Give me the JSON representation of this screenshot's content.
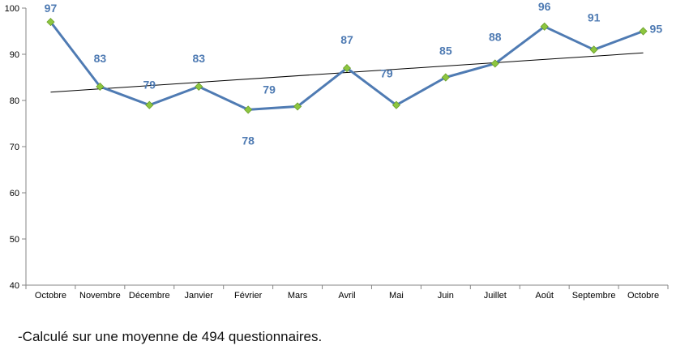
{
  "chart_data": {
    "type": "line",
    "categories": [
      "Octobre",
      "Novembre",
      "Décembre",
      "Janvier",
      "Février",
      "Mars",
      "Avril",
      "Mai",
      "Juin",
      "Juillet",
      "Août",
      "Septembre",
      "Octobre"
    ],
    "series": [
      {
        "values": [
          97,
          83,
          79,
          83,
          78,
          78.7,
          87,
          79,
          85,
          88,
          96,
          91,
          95
        ],
        "data_labels": [
          "97",
          "83",
          "79",
          "83",
          "78",
          "79",
          "87",
          "79",
          "85",
          "88",
          "96",
          "91",
          "95"
        ],
        "color": "#4f7bb3",
        "marker_color": "#8dc63f"
      }
    ],
    "trendline": {
      "type": "linear",
      "start": 81.8,
      "end": 90.3,
      "color": "#000000"
    },
    "ylim": [
      40,
      100
    ],
    "yticks": [
      40,
      50,
      60,
      70,
      80,
      90,
      100
    ],
    "xlabel": "",
    "ylabel": "",
    "title": "",
    "grid": false,
    "legend": "none"
  },
  "footnote": "-Calculé sur une moyenne de 494 questionnaires."
}
